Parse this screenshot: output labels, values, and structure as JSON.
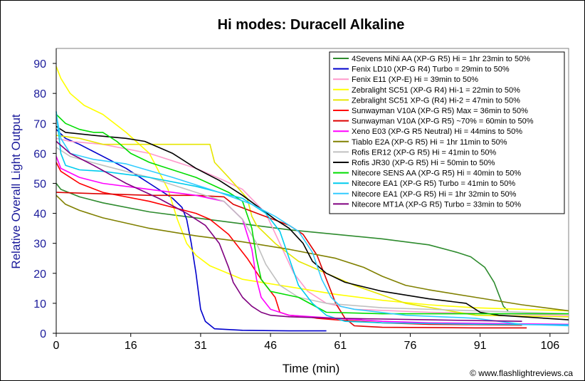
{
  "chart_data": {
    "type": "line",
    "title": "Hi modes: Duracell Alkaline",
    "xlabel": "Time (min)",
    "ylabel": "Relative Overall Light Output",
    "xlim": [
      0,
      110
    ],
    "ylim": [
      0,
      95
    ],
    "xticks": [
      0,
      16,
      31,
      46,
      61,
      76,
      91,
      106
    ],
    "yticks": [
      0,
      10,
      20,
      30,
      40,
      50,
      60,
      70,
      80,
      90
    ],
    "grid": false,
    "legend_position": "top-right",
    "credit": "© www.flashlightreviews.ca",
    "series": [
      {
        "name": "4Sevens MiNi AA (XP-G R5) Hi = 1hr 23min to 50%",
        "color": "#2e8b2e",
        "points": [
          [
            0,
            50
          ],
          [
            1,
            48
          ],
          [
            5,
            45.5
          ],
          [
            10,
            43.5
          ],
          [
            20,
            40.5
          ],
          [
            30,
            38.5
          ],
          [
            40,
            36.5
          ],
          [
            50,
            34.5
          ],
          [
            60,
            33
          ],
          [
            70,
            31.5
          ],
          [
            80,
            29.5
          ],
          [
            86,
            27
          ],
          [
            89,
            25.5
          ],
          [
            92,
            22
          ],
          [
            94,
            17
          ],
          [
            95,
            13
          ],
          [
            96,
            9
          ],
          [
            97,
            7.5
          ]
        ]
      },
      {
        "name": "Fenix LD10 (XP-G R4) Turbo = 29min to 50%",
        "color": "#0000cc",
        "points": [
          [
            0,
            68
          ],
          [
            2,
            65
          ],
          [
            5,
            63
          ],
          [
            10,
            59
          ],
          [
            15,
            55
          ],
          [
            20,
            50
          ],
          [
            25,
            45
          ],
          [
            27,
            42
          ],
          [
            28,
            38
          ],
          [
            29,
            30
          ],
          [
            30,
            20
          ],
          [
            31,
            8
          ],
          [
            32,
            4
          ],
          [
            34,
            1.5
          ],
          [
            40,
            1
          ],
          [
            50,
            0.8
          ],
          [
            58,
            0.8
          ]
        ]
      },
      {
        "name": "Fenix E11 (XP-E) Hi = 39min to 50%",
        "color": "#ff99cc",
        "points": [
          [
            0,
            65
          ],
          [
            3,
            64
          ],
          [
            10,
            63
          ],
          [
            20,
            60
          ],
          [
            30,
            55
          ],
          [
            36,
            51
          ],
          [
            40,
            48
          ],
          [
            45,
            40
          ],
          [
            48,
            30
          ],
          [
            51,
            20
          ],
          [
            54,
            14
          ],
          [
            58,
            10
          ],
          [
            64,
            8
          ],
          [
            80,
            7
          ],
          [
            110,
            6
          ]
        ]
      },
      {
        "name": "Zebralight SC51 (XP-G R4) Hi-1 = 22min to 50%",
        "color": "#ffff00",
        "points": [
          [
            0,
            89
          ],
          [
            1,
            85
          ],
          [
            3,
            80
          ],
          [
            6,
            76
          ],
          [
            10,
            73
          ],
          [
            15,
            67
          ],
          [
            20,
            60
          ],
          [
            24,
            48
          ],
          [
            26,
            38
          ],
          [
            28,
            30
          ],
          [
            30,
            26
          ],
          [
            33,
            22.5
          ],
          [
            40,
            18
          ],
          [
            50,
            15.5
          ],
          [
            60,
            13
          ],
          [
            70,
            11
          ],
          [
            80,
            9.5
          ],
          [
            90,
            8.5
          ],
          [
            100,
            8
          ],
          [
            110,
            7.5
          ]
        ]
      },
      {
        "name": "Zebralight SC51 XP-G (R4) Hi-2 = 47min to 50%",
        "color": "#e6e600",
        "points": [
          [
            0,
            66
          ],
          [
            5,
            65
          ],
          [
            10,
            63
          ],
          [
            15,
            63
          ],
          [
            20,
            63
          ],
          [
            25,
            63
          ],
          [
            33,
            63
          ],
          [
            34,
            57
          ],
          [
            37,
            52
          ],
          [
            41,
            45
          ],
          [
            42,
            39
          ],
          [
            43,
            36
          ],
          [
            47,
            30
          ],
          [
            52,
            24
          ],
          [
            58,
            20
          ],
          [
            64,
            16
          ],
          [
            75,
            10
          ],
          [
            90,
            6
          ],
          [
            110,
            5.5
          ]
        ]
      },
      {
        "name": "Sunwayman V10A (XP-G R5) Max = 36min to 50%",
        "color": "#ff0000",
        "points": [
          [
            0,
            57
          ],
          [
            1,
            54
          ],
          [
            5,
            50
          ],
          [
            10,
            47
          ],
          [
            20,
            44
          ],
          [
            30,
            40
          ],
          [
            33,
            38
          ],
          [
            37,
            33
          ],
          [
            41,
            25
          ],
          [
            44,
            18
          ],
          [
            47,
            12
          ],
          [
            48,
            7
          ],
          [
            50,
            6
          ],
          [
            54,
            5.5
          ],
          [
            56,
            5
          ],
          [
            60,
            4.5
          ],
          [
            70,
            3.5
          ],
          [
            80,
            3
          ],
          [
            100,
            2.7
          ]
        ]
      },
      {
        "name": "Sunwayman V10A (XP-G R5) ~70% = 60min to 50%",
        "color": "#dd0000",
        "points": [
          [
            0,
            47
          ],
          [
            10,
            46.5
          ],
          [
            20,
            46
          ],
          [
            30,
            46
          ],
          [
            36,
            45.5
          ],
          [
            38,
            43
          ],
          [
            44,
            39.5
          ],
          [
            50,
            36
          ],
          [
            53,
            33
          ],
          [
            56,
            26
          ],
          [
            58,
            18
          ],
          [
            60,
            10
          ],
          [
            62,
            5
          ],
          [
            64,
            2.5
          ],
          [
            70,
            2
          ],
          [
            90,
            1.8
          ],
          [
            101,
            1.8
          ]
        ]
      },
      {
        "name": "Xeno E03 (XP-G R5 Neutral) Hi = 44mins to 50%",
        "color": "#ff00ff",
        "points": [
          [
            0,
            59
          ],
          [
            1,
            55
          ],
          [
            5,
            52
          ],
          [
            10,
            50
          ],
          [
            20,
            48
          ],
          [
            30,
            46
          ],
          [
            36,
            44
          ],
          [
            40,
            38
          ],
          [
            42,
            28
          ],
          [
            43,
            18
          ],
          [
            44,
            12
          ],
          [
            46,
            8
          ],
          [
            50,
            6
          ],
          [
            60,
            5
          ],
          [
            70,
            4
          ],
          [
            80,
            3.5
          ],
          [
            110,
            3
          ]
        ]
      },
      {
        "name": "Tiablo E2A (XP-G R5) Hi = 1hr 11min to 50%",
        "color": "#808000",
        "points": [
          [
            0,
            46
          ],
          [
            2,
            43
          ],
          [
            5,
            41
          ],
          [
            10,
            38.5
          ],
          [
            20,
            35
          ],
          [
            30,
            32.5
          ],
          [
            40,
            30.5
          ],
          [
            50,
            28
          ],
          [
            60,
            25
          ],
          [
            66,
            22
          ],
          [
            70,
            19
          ],
          [
            75,
            16
          ],
          [
            80,
            14.5
          ],
          [
            90,
            12
          ],
          [
            100,
            9.5
          ],
          [
            110,
            7.5
          ]
        ]
      },
      {
        "name": "Rofis ER12 (XP-G R5) Hi = 41min to 50%",
        "color": "#c0c0c0",
        "points": [
          [
            0,
            62
          ],
          [
            3,
            59
          ],
          [
            10,
            56
          ],
          [
            20,
            52
          ],
          [
            30,
            47
          ],
          [
            36,
            44
          ],
          [
            40,
            38
          ],
          [
            43,
            30
          ],
          [
            45,
            23
          ],
          [
            48,
            16
          ],
          [
            52,
            12
          ],
          [
            58,
            10
          ],
          [
            70,
            8.5
          ],
          [
            90,
            7.5
          ],
          [
            110,
            6.5
          ]
        ]
      },
      {
        "name": "Rofis JR30 (XP-G R5) Hi = 50min to 50%",
        "color": "#000000",
        "points": [
          [
            0,
            69
          ],
          [
            2,
            67
          ],
          [
            8,
            66
          ],
          [
            15,
            65
          ],
          [
            19,
            64
          ],
          [
            25,
            60
          ],
          [
            30,
            55
          ],
          [
            35,
            51
          ],
          [
            40,
            46
          ],
          [
            47,
            38
          ],
          [
            50,
            35
          ],
          [
            53,
            30
          ],
          [
            55,
            24
          ],
          [
            58,
            20
          ],
          [
            62,
            17
          ],
          [
            70,
            14
          ],
          [
            80,
            11.5
          ],
          [
            88,
            10
          ],
          [
            91,
            7
          ],
          [
            95,
            6
          ],
          [
            100,
            5.5
          ],
          [
            110,
            4.5
          ]
        ]
      },
      {
        "name": "Nitecore SENS AA (XP-G R5) Hi = 40min to 50%",
        "color": "#00dd00",
        "points": [
          [
            0,
            73
          ],
          [
            2,
            70
          ],
          [
            5,
            68
          ],
          [
            8,
            67
          ],
          [
            10,
            67
          ],
          [
            13,
            64
          ],
          [
            16,
            60
          ],
          [
            20,
            57
          ],
          [
            30,
            52
          ],
          [
            37,
            47
          ],
          [
            40,
            44
          ],
          [
            42,
            35
          ],
          [
            43,
            25
          ],
          [
            44,
            18
          ],
          [
            46,
            14
          ],
          [
            52,
            12
          ],
          [
            58,
            7
          ],
          [
            70,
            6.5
          ],
          [
            90,
            6.5
          ],
          [
            110,
            6.5
          ]
        ]
      },
      {
        "name": "Nitecore EA1 (XP-G R5) Turbo = 41min to 50%",
        "color": "#00ccee",
        "points": [
          [
            0,
            74
          ],
          [
            1,
            60
          ],
          [
            2,
            56
          ],
          [
            5,
            54.5
          ],
          [
            10,
            54
          ],
          [
            20,
            52
          ],
          [
            30,
            49
          ],
          [
            40,
            45
          ],
          [
            45,
            40
          ],
          [
            48,
            34
          ],
          [
            50,
            25
          ],
          [
            52,
            16
          ],
          [
            55,
            10
          ],
          [
            58,
            6
          ],
          [
            62,
            4
          ],
          [
            70,
            3.5
          ],
          [
            90,
            3
          ],
          [
            110,
            2.8
          ]
        ]
      },
      {
        "name": "Nitecore EA1 (XP-G R5) Hi = 1hr 32min to 50%",
        "color": "#33ccff",
        "points": [
          [
            0,
            73
          ],
          [
            1,
            65
          ],
          [
            3,
            60
          ],
          [
            8,
            58
          ],
          [
            15,
            56.5
          ],
          [
            25,
            52
          ],
          [
            35,
            47
          ],
          [
            42,
            43
          ],
          [
            47,
            39
          ],
          [
            52,
            34
          ],
          [
            55,
            27
          ],
          [
            57,
            18
          ],
          [
            59,
            12
          ],
          [
            61,
            9
          ],
          [
            64,
            8
          ],
          [
            75,
            6
          ],
          [
            90,
            5
          ],
          [
            100,
            3
          ],
          [
            110,
            2.5
          ]
        ]
      },
      {
        "name": "Nitecore MT1A (XP-G R5) Turbo = 33min to 50%",
        "color": "#800080",
        "points": [
          [
            0,
            64
          ],
          [
            3,
            60
          ],
          [
            8,
            56
          ],
          [
            15,
            50
          ],
          [
            22,
            45
          ],
          [
            28,
            40
          ],
          [
            32,
            36
          ],
          [
            35,
            30
          ],
          [
            37,
            22
          ],
          [
            38,
            17
          ],
          [
            40,
            12
          ],
          [
            42,
            9
          ],
          [
            44,
            7
          ],
          [
            46,
            6
          ],
          [
            50,
            5.5
          ],
          [
            60,
            5
          ],
          [
            80,
            4.5
          ],
          [
            100,
            4
          ]
        ]
      }
    ]
  }
}
